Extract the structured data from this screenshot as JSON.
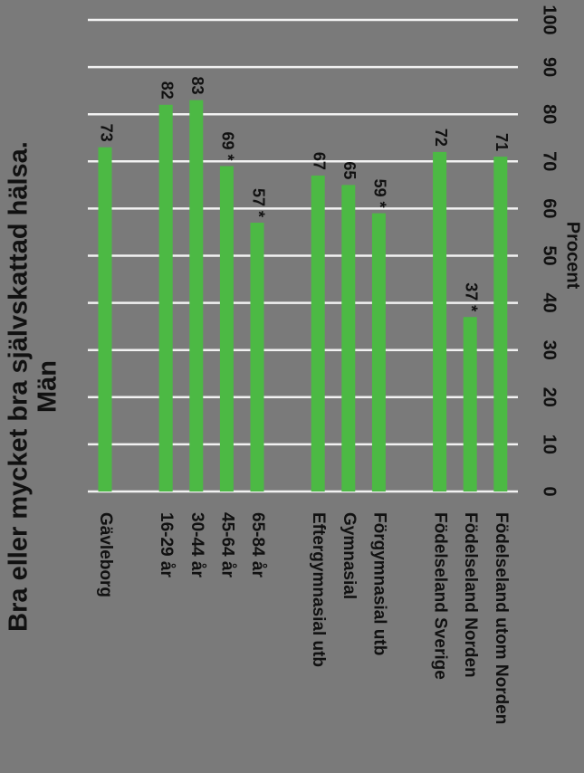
{
  "chart_data": {
    "type": "bar",
    "orientation": "horizontal",
    "rotated": "90deg clockwise",
    "title": "Bra eller mycket bra självskattad hälsa.",
    "subtitle": "Män",
    "xlabel": "Procent",
    "xlim": [
      0,
      100
    ],
    "xticks": [
      0,
      10,
      20,
      30,
      40,
      50,
      60,
      70,
      80,
      90,
      100
    ],
    "grid": true,
    "bar_color": "#4cb944",
    "groups": [
      {
        "categories": [
          "Gävleborg"
        ],
        "values": [
          73
        ],
        "labels": [
          "73"
        ]
      },
      {
        "categories": [
          "16-29 år",
          "30-44 år",
          "45-64 år",
          "65-84 år"
        ],
        "values": [
          82,
          83,
          69,
          57
        ],
        "labels": [
          "82",
          "83",
          "69 *",
          "57 *"
        ]
      },
      {
        "categories": [
          "Eftergymnasial utb",
          "Gymnasial",
          "Förgymnasial utb"
        ],
        "values": [
          67,
          65,
          59
        ],
        "labels": [
          "67",
          "65",
          "59 *"
        ]
      },
      {
        "categories": [
          "Födelseland Sverige",
          "Födelseland Norden",
          "Födelseland utom Norden"
        ],
        "values": [
          72,
          37,
          71
        ],
        "labels": [
          "72",
          "37 *",
          "71"
        ]
      }
    ]
  }
}
